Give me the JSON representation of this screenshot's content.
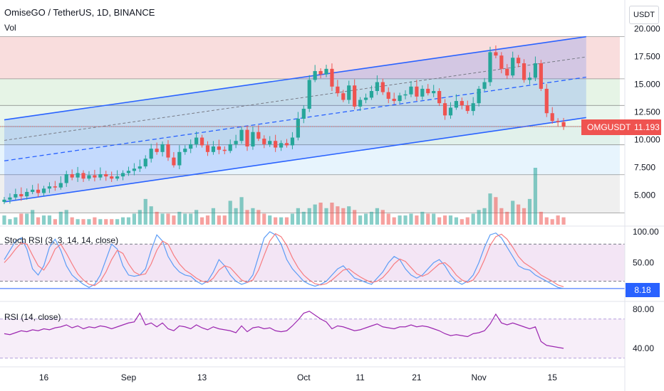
{
  "header": {
    "title": "OmiseGO / TetherUS, 1D, BINANCE",
    "volume_label": "Vol"
  },
  "price_scale": {
    "unit": "USDT",
    "ticks": [
      "20.000",
      "17.500",
      "15.000",
      "12.500",
      "10.000",
      "7.500",
      "5.000"
    ]
  },
  "price_tag": {
    "symbol": "OMGUSDT",
    "value": "11.193",
    "color": "#ef5350"
  },
  "stoch_rsi": {
    "label": "Stoch RSI (3, 3, 14, 14, close)",
    "ticks": [
      "100.00",
      "50.00"
    ],
    "last_value": "8.18",
    "k_color": "#5b9cf6",
    "d_color": "#f77c80"
  },
  "rsi": {
    "label": "RSI (14, close)",
    "ticks": [
      "80.00",
      "40.00"
    ],
    "color": "#9c27b0"
  },
  "time_axis": {
    "labels": [
      "16",
      "Sep",
      "13",
      "Oct",
      "11",
      "21",
      "Nov",
      "15"
    ]
  },
  "colors": {
    "up": "#26a69a",
    "down": "#ef5350",
    "channel": "#2962ff"
  },
  "chart_data": [
    {
      "type": "candlestick",
      "title": "OmiseGO / TetherUS, 1D, BINANCE",
      "ylabel": "USDT",
      "ylim": [
        3.0,
        20.3
      ],
      "grid": false,
      "bands": [
        {
          "from": 15.5,
          "to": 19.3,
          "color": "#f8d7d7"
        },
        {
          "from": 13.1,
          "to": 15.5,
          "color": "#e2f2e2"
        },
        {
          "from": 11.2,
          "to": 13.1,
          "color": "#e6f4ea"
        },
        {
          "from": 9.55,
          "to": 11.2,
          "color": "#dcefe8"
        },
        {
          "from": 6.85,
          "to": 9.55,
          "color": "#e3f2fd"
        },
        {
          "from": 3.4,
          "to": 6.85,
          "color": "#ececec"
        }
      ],
      "levels": [
        19.3,
        15.5,
        13.1,
        11.2,
        9.55,
        6.85,
        3.4
      ],
      "channel": {
        "upper": [
          {
            "x": 0,
            "y": 11.8
          },
          {
            "x": 103,
            "y": 19.3
          }
        ],
        "lower": [
          {
            "x": 0,
            "y": 4.4
          },
          {
            "x": 103,
            "y": 12.0
          }
        ]
      },
      "close": [
        4.6,
        4.8,
        5.1,
        4.9,
        5.3,
        5.5,
        5.2,
        5.6,
        5.8,
        5.7,
        6.1,
        6.9,
        6.6,
        7.0,
        6.5,
        6.8,
        6.6,
        6.9,
        6.7,
        6.5,
        6.7,
        7.0,
        7.2,
        7.4,
        7.6,
        8.3,
        9.2,
        8.9,
        9.6,
        8.4,
        7.7,
        8.9,
        9.2,
        9.6,
        10.2,
        9.5,
        8.9,
        9.4,
        9.1,
        9.0,
        9.6,
        9.9,
        10.9,
        9.4,
        10.7,
        10.1,
        9.6,
        9.9,
        9.3,
        9.7,
        9.5,
        10.2,
        11.9,
        12.8,
        15.4,
        16.2,
        15.9,
        16.4,
        14.8,
        14.2,
        13.6,
        14.9,
        13.0,
        13.6,
        13.8,
        14.4,
        15.2,
        14.3,
        13.7,
        13.5,
        14.0,
        14.1,
        14.8,
        13.9,
        14.6,
        14.2,
        14.4,
        13.3,
        12.2,
        12.9,
        13.5,
        13.1,
        12.6,
        13.3,
        14.6,
        15.2,
        17.9,
        17.6,
        16.4,
        15.8,
        17.4,
        16.9,
        15.4,
        15.6,
        16.9,
        14.6,
        12.4,
        11.7,
        11.6,
        11.193
      ]
    },
    {
      "type": "bar",
      "title": "Vol",
      "values": [
        5,
        3,
        4,
        6,
        6,
        8,
        4,
        5,
        5,
        3,
        7,
        8,
        4,
        3,
        3,
        3,
        4,
        3,
        3,
        3,
        3,
        4,
        4,
        6,
        8,
        14,
        10,
        7,
        6,
        6,
        5,
        7,
        6,
        6,
        8,
        4,
        5,
        9,
        5,
        5,
        13,
        9,
        15,
        8,
        9,
        8,
        6,
        5,
        4,
        4,
        4,
        6,
        9,
        7,
        9,
        11,
        12,
        9,
        12,
        10,
        9,
        10,
        8,
        5,
        6,
        7,
        9,
        8,
        6,
        4,
        5,
        5,
        6,
        5,
        7,
        6,
        6,
        4,
        5,
        5,
        4,
        3,
        4,
        6,
        8,
        9,
        17,
        15,
        9,
        7,
        13,
        11,
        9,
        14,
        31,
        7,
        4,
        3,
        5,
        4
      ]
    },
    {
      "type": "line",
      "title": "Stoch RSI (3, 3, 14, 14, close)",
      "ylim": [
        0,
        100
      ],
      "levels": [
        80,
        20
      ],
      "series": [
        {
          "name": "K",
          "values": [
            55,
            70,
            85,
            90,
            72,
            40,
            30,
            45,
            75,
            88,
            70,
            45,
            30,
            22,
            15,
            10,
            15,
            30,
            55,
            80,
            72,
            45,
            30,
            28,
            30,
            40,
            70,
            95,
            85,
            60,
            45,
            35,
            30,
            28,
            20,
            15,
            20,
            35,
            55,
            45,
            30,
            20,
            15,
            18,
            30,
            60,
            90,
            100,
            95,
            80,
            55,
            40,
            30,
            20,
            15,
            12,
            15,
            20,
            30,
            40,
            45,
            35,
            25,
            22,
            18,
            15,
            25,
            35,
            50,
            60,
            55,
            40,
            30,
            25,
            30,
            40,
            50,
            55,
            45,
            30,
            20,
            15,
            20,
            30,
            50,
            75,
            95,
            98,
            90,
            75,
            60,
            45,
            40,
            38,
            30,
            25,
            20,
            15,
            10,
            8.18
          ]
        },
        {
          "name": "D",
          "values": [
            50,
            60,
            72,
            82,
            80,
            62,
            45,
            38,
            52,
            72,
            80,
            65,
            48,
            32,
            22,
            15,
            13,
            20,
            35,
            55,
            70,
            65,
            48,
            35,
            30,
            32,
            48,
            70,
            85,
            80,
            62,
            48,
            38,
            32,
            25,
            20,
            18,
            25,
            38,
            45,
            42,
            32,
            22,
            18,
            22,
            38,
            62,
            85,
            97,
            92,
            78,
            58,
            42,
            30,
            22,
            16,
            14,
            16,
            22,
            30,
            38,
            40,
            33,
            27,
            22,
            18,
            20,
            26,
            36,
            48,
            56,
            52,
            42,
            32,
            28,
            32,
            40,
            48,
            50,
            42,
            30,
            22,
            18,
            22,
            35,
            55,
            78,
            92,
            96,
            88,
            75,
            60,
            50,
            44,
            38,
            30,
            25,
            20,
            14,
            11
          ]
        }
      ]
    },
    {
      "type": "line",
      "title": "RSI (14, close)",
      "ylim": [
        30,
        90
      ],
      "levels": [
        70,
        30
      ],
      "series": [
        {
          "name": "RSI",
          "values": [
            55,
            54,
            56,
            58,
            57,
            59,
            58,
            60,
            59,
            61,
            62,
            64,
            61,
            63,
            60,
            62,
            61,
            63,
            62,
            60,
            62,
            64,
            66,
            67,
            76,
            64,
            66,
            62,
            66,
            60,
            58,
            63,
            62,
            60,
            64,
            61,
            59,
            62,
            60,
            59,
            58,
            56,
            63,
            57,
            61,
            62,
            60,
            61,
            58,
            57,
            58,
            63,
            69,
            76,
            78,
            74,
            70,
            67,
            60,
            63,
            62,
            60,
            58,
            59,
            61,
            63,
            65,
            62,
            61,
            60,
            62,
            62,
            64,
            62,
            63,
            62,
            60,
            58,
            55,
            53,
            54,
            53,
            52,
            55,
            56,
            58,
            65,
            75,
            66,
            64,
            66,
            64,
            62,
            60,
            62,
            47,
            43,
            42,
            41,
            40
          ]
        }
      ]
    }
  ]
}
